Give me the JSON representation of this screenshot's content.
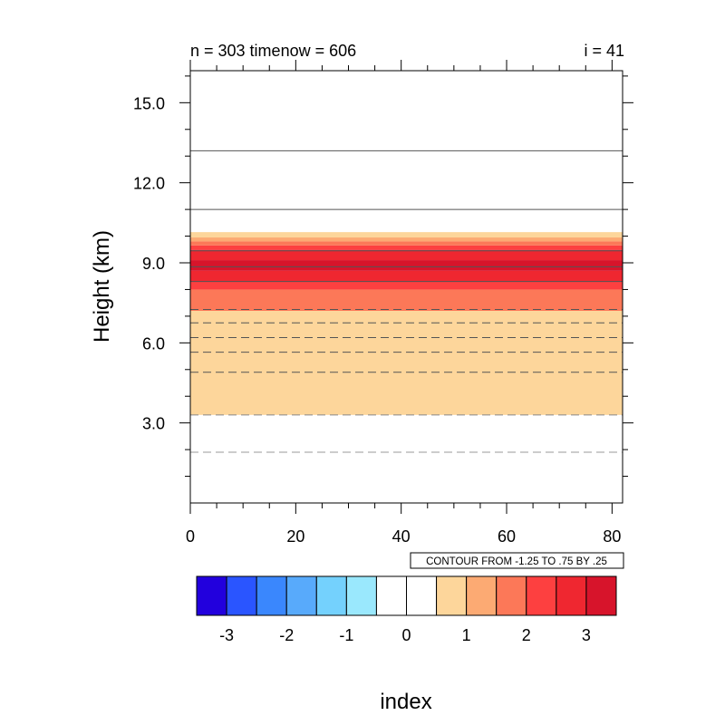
{
  "chart_data": {
    "type": "heatmap",
    "title_left": "n = 303 timenow = 606",
    "title_right": "i = 41",
    "ylabel": "Height (km)",
    "xlabel": "index",
    "xlim": [
      0,
      82
    ],
    "ylim": [
      0,
      16.2
    ],
    "x_ticks": [
      0,
      20,
      40,
      60,
      80
    ],
    "y_ticks": [
      3.0,
      6.0,
      9.0,
      12.0,
      15.0
    ],
    "x_tick_labels": [
      "0",
      "20",
      "40",
      "60",
      "80"
    ],
    "y_tick_labels": [
      "3.0",
      "6.0",
      "9.0",
      "12.0",
      "15.0"
    ],
    "contour_info": "CONTOUR FROM -1.25 TO .75 BY .25",
    "fill_bands": [
      {
        "y0": 3.3,
        "y1": 7.2,
        "color": "#fdd69b"
      },
      {
        "y0": 7.2,
        "y1": 8.0,
        "color": "#fc7858"
      },
      {
        "y0": 8.0,
        "y1": 8.3,
        "color": "#fd4040"
      },
      {
        "y0": 8.3,
        "y1": 8.7,
        "color": "#ef2730"
      },
      {
        "y0": 8.7,
        "y1": 9.1,
        "color": "#d7142b"
      },
      {
        "y0": 9.1,
        "y1": 9.5,
        "color": "#ef2730"
      },
      {
        "y0": 9.5,
        "y1": 9.65,
        "color": "#fd4040"
      },
      {
        "y0": 9.65,
        "y1": 9.8,
        "color": "#fc7858"
      },
      {
        "y0": 9.8,
        "y1": 9.95,
        "color": "#fcaa73"
      },
      {
        "y0": 9.95,
        "y1": 10.15,
        "color": "#fdd69b"
      }
    ],
    "contour_lines": [
      {
        "y": 1.9,
        "style": "dashed",
        "color": "#999999"
      },
      {
        "y": 3.3,
        "style": "dashed",
        "color": "#888888"
      },
      {
        "y": 4.9,
        "style": "dashed",
        "color": "#555555"
      },
      {
        "y": 5.65,
        "style": "dashed",
        "color": "#555555"
      },
      {
        "y": 6.2,
        "style": "dashed",
        "color": "#555555"
      },
      {
        "y": 6.75,
        "style": "dashed",
        "color": "#555555"
      },
      {
        "y": 7.25,
        "style": "dashed",
        "color": "#555555"
      },
      {
        "y": 8.3,
        "style": "solid",
        "color": "#555555"
      },
      {
        "y": 8.85,
        "style": "solid",
        "color": "#555555"
      },
      {
        "y": 9.45,
        "style": "solid",
        "color": "#555555"
      },
      {
        "y": 11.0,
        "style": "solid",
        "color": "#555555"
      },
      {
        "y": 13.2,
        "style": "solid",
        "color": "#555555"
      }
    ],
    "colorbar": {
      "colors": [
        "#2200dd",
        "#2a55ff",
        "#3a87fd",
        "#58aafb",
        "#74d1fd",
        "#9ae8fd",
        "#ffffff",
        "#ffffff",
        "#fdd69b",
        "#fcaa73",
        "#fc7858",
        "#fd4040",
        "#ef2730",
        "#d7142b"
      ],
      "labels": [
        "-3",
        "-2",
        "-1",
        "0",
        "1",
        "2",
        "3"
      ]
    }
  }
}
